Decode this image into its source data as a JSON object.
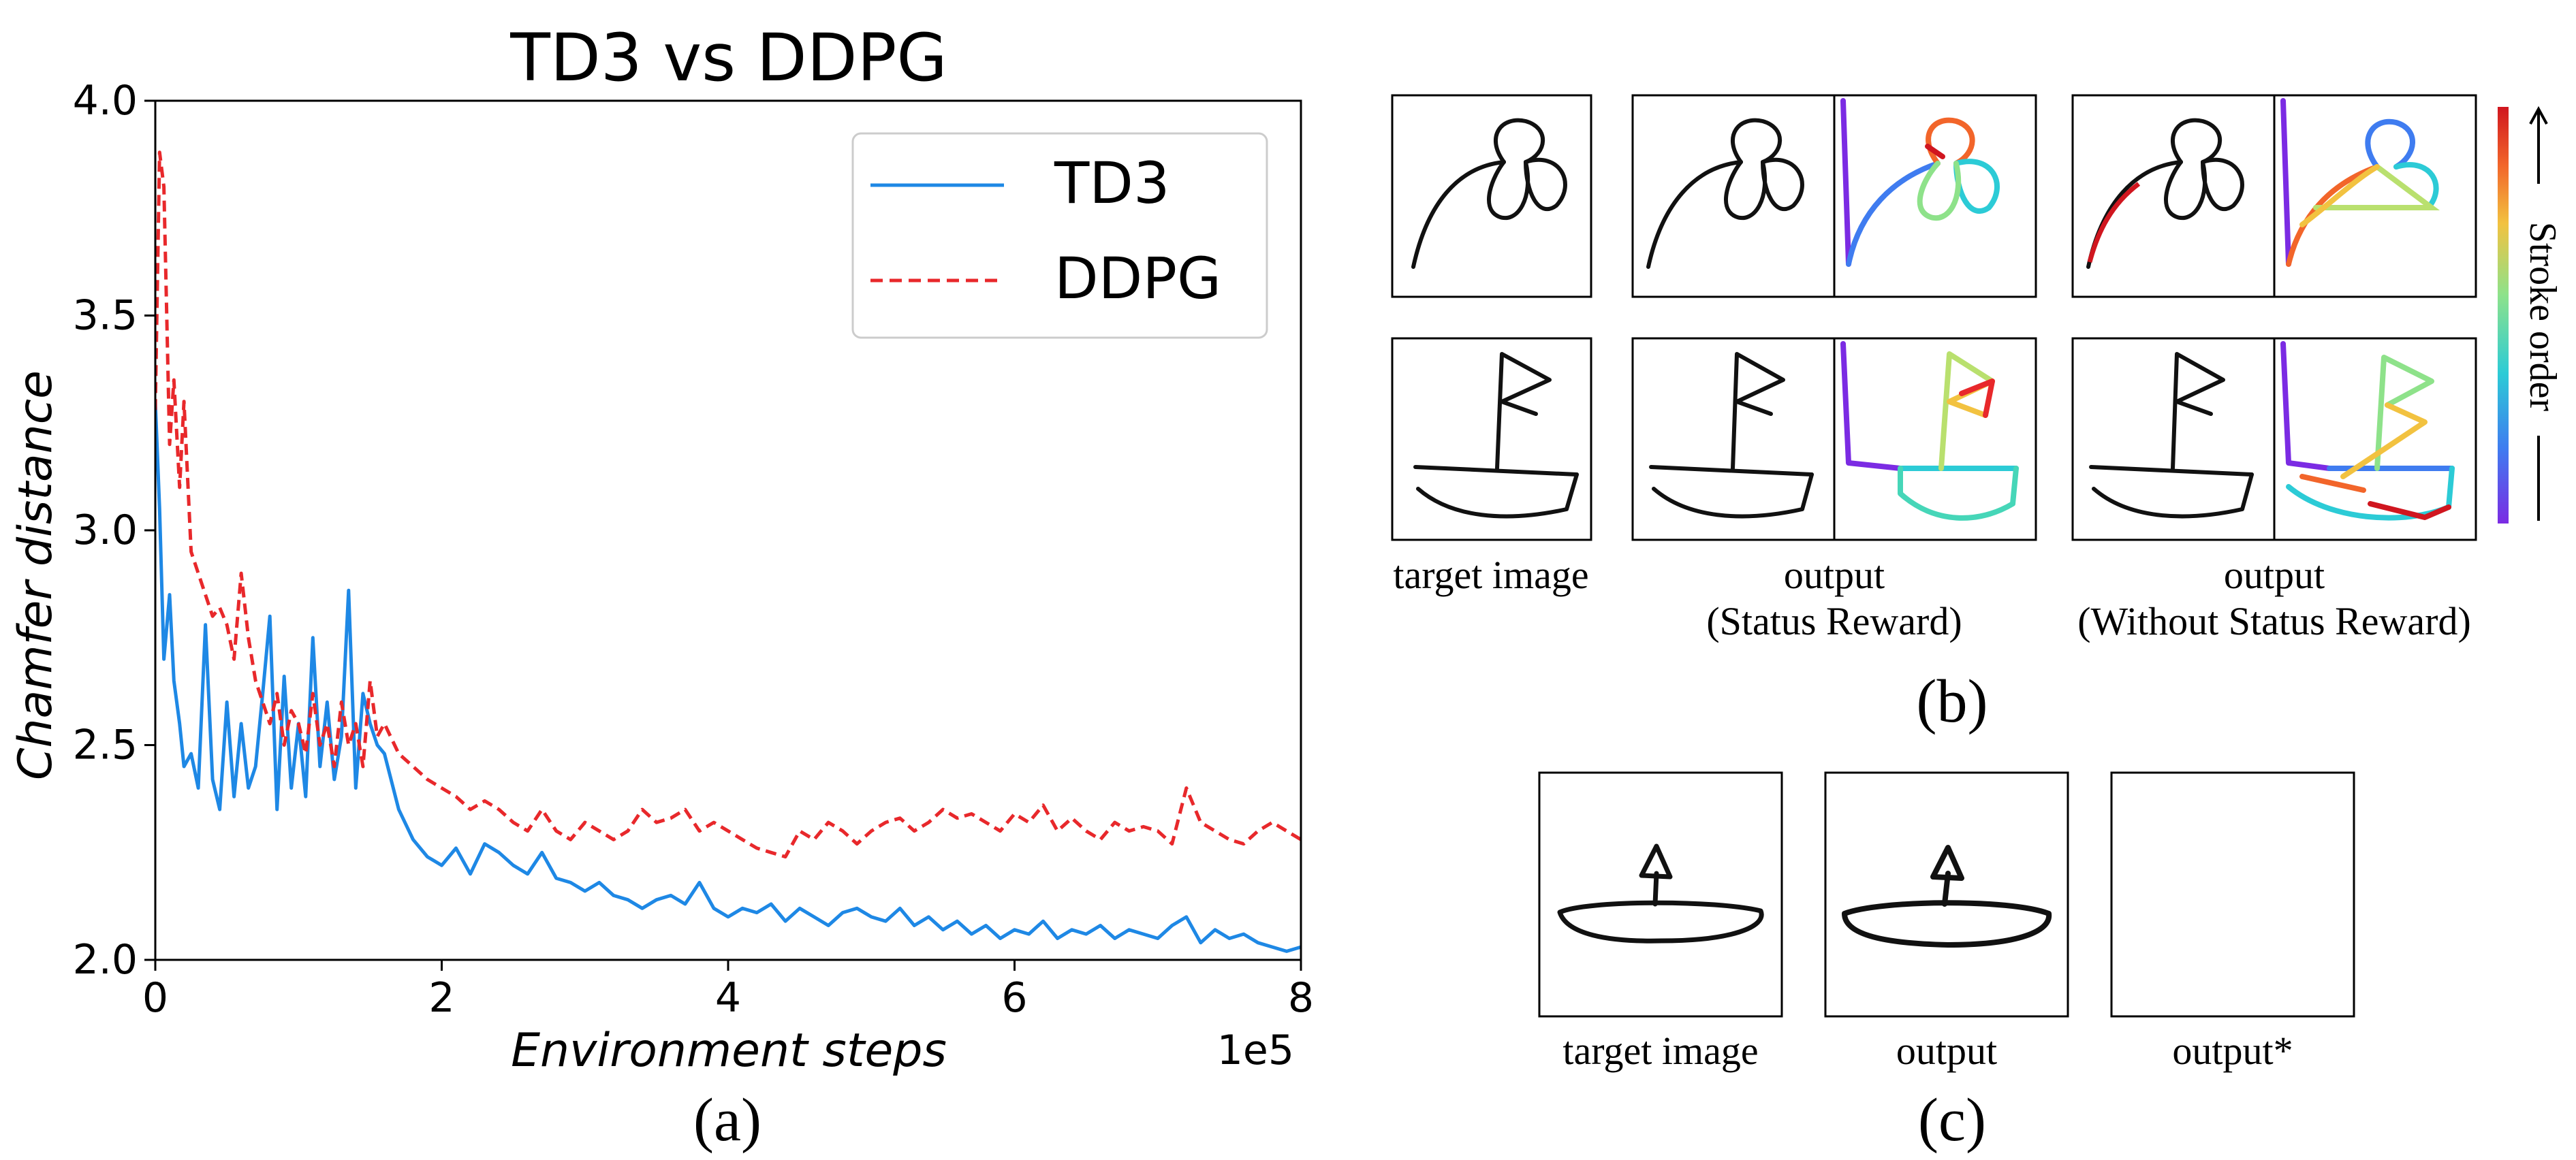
{
  "panel_a": {
    "caption": "(a)",
    "chart_data": {
      "type": "line",
      "title": "TD3 vs DDPG",
      "xlabel": "Environment steps",
      "ylabel": "Chamfer distance",
      "x_multiplier_label": "1e5",
      "xlim": [
        0,
        8
      ],
      "ylim": [
        2.0,
        4.0
      ],
      "xticks": [
        0,
        2,
        4,
        6,
        8
      ],
      "xtick_labels": [
        "0",
        "2",
        "4",
        "6",
        "8"
      ],
      "yticks": [
        2.0,
        2.5,
        3.0,
        3.5,
        4.0
      ],
      "ytick_labels": [
        "2.0",
        "2.5",
        "3.0",
        "3.5",
        "4.0"
      ],
      "grid": false,
      "legend_position": "top-right",
      "series": [
        {
          "name": "TD3",
          "color": "#1e88e5",
          "style": "solid",
          "x": [
            0,
            0.03,
            0.06,
            0.1,
            0.13,
            0.17,
            0.2,
            0.25,
            0.3,
            0.35,
            0.4,
            0.45,
            0.5,
            0.55,
            0.6,
            0.65,
            0.7,
            0.75,
            0.8,
            0.85,
            0.9,
            0.95,
            1.0,
            1.05,
            1.1,
            1.15,
            1.2,
            1.25,
            1.3,
            1.35,
            1.4,
            1.45,
            1.5,
            1.55,
            1.6,
            1.7,
            1.8,
            1.9,
            2.0,
            2.1,
            2.2,
            2.3,
            2.4,
            2.5,
            2.6,
            2.7,
            2.8,
            2.9,
            3.0,
            3.1,
            3.2,
            3.3,
            3.4,
            3.5,
            3.6,
            3.7,
            3.8,
            3.9,
            4.0,
            4.1,
            4.2,
            4.3,
            4.4,
            4.5,
            4.6,
            4.7,
            4.8,
            4.9,
            5.0,
            5.1,
            5.2,
            5.3,
            5.4,
            5.5,
            5.6,
            5.7,
            5.8,
            5.9,
            6.0,
            6.1,
            6.2,
            6.3,
            6.4,
            6.5,
            6.6,
            6.7,
            6.8,
            6.9,
            7.0,
            7.1,
            7.2,
            7.3,
            7.4,
            7.5,
            7.6,
            7.7,
            7.8,
            7.9,
            8.0
          ],
          "y": [
            3.3,
            3.05,
            2.7,
            2.85,
            2.65,
            2.55,
            2.45,
            2.48,
            2.4,
            2.78,
            2.42,
            2.35,
            2.6,
            2.38,
            2.55,
            2.4,
            2.45,
            2.62,
            2.8,
            2.35,
            2.66,
            2.4,
            2.55,
            2.38,
            2.75,
            2.45,
            2.6,
            2.42,
            2.52,
            2.86,
            2.4,
            2.62,
            2.55,
            2.5,
            2.48,
            2.35,
            2.28,
            2.24,
            2.22,
            2.26,
            2.2,
            2.27,
            2.25,
            2.22,
            2.2,
            2.25,
            2.19,
            2.18,
            2.16,
            2.18,
            2.15,
            2.14,
            2.12,
            2.14,
            2.15,
            2.13,
            2.18,
            2.12,
            2.1,
            2.12,
            2.11,
            2.13,
            2.09,
            2.12,
            2.1,
            2.08,
            2.11,
            2.12,
            2.1,
            2.09,
            2.12,
            2.08,
            2.1,
            2.07,
            2.09,
            2.06,
            2.08,
            2.05,
            2.07,
            2.06,
            2.09,
            2.05,
            2.07,
            2.06,
            2.08,
            2.05,
            2.07,
            2.06,
            2.05,
            2.08,
            2.1,
            2.04,
            2.07,
            2.05,
            2.06,
            2.04,
            2.03,
            2.02,
            2.03
          ]
        },
        {
          "name": "DDPG",
          "color": "#e8282b",
          "style": "dashed",
          "x": [
            0,
            0.03,
            0.06,
            0.1,
            0.13,
            0.17,
            0.2,
            0.25,
            0.3,
            0.35,
            0.4,
            0.45,
            0.5,
            0.55,
            0.6,
            0.65,
            0.7,
            0.75,
            0.8,
            0.85,
            0.9,
            0.95,
            1.0,
            1.05,
            1.1,
            1.15,
            1.2,
            1.25,
            1.3,
            1.35,
            1.4,
            1.45,
            1.5,
            1.55,
            1.6,
            1.7,
            1.8,
            1.9,
            2.0,
            2.1,
            2.2,
            2.3,
            2.4,
            2.5,
            2.6,
            2.7,
            2.8,
            2.9,
            3.0,
            3.1,
            3.2,
            3.3,
            3.4,
            3.5,
            3.6,
            3.7,
            3.8,
            3.9,
            4.0,
            4.1,
            4.2,
            4.3,
            4.4,
            4.5,
            4.6,
            4.7,
            4.8,
            4.9,
            5.0,
            5.1,
            5.2,
            5.3,
            5.4,
            5.5,
            5.6,
            5.7,
            5.8,
            5.9,
            6.0,
            6.1,
            6.2,
            6.3,
            6.4,
            6.5,
            6.6,
            6.7,
            6.8,
            6.9,
            7.0,
            7.1,
            7.2,
            7.3,
            7.4,
            7.5,
            7.6,
            7.7,
            7.8,
            7.9,
            8.0
          ],
          "y": [
            3.28,
            3.88,
            3.8,
            3.2,
            3.35,
            3.1,
            3.3,
            2.95,
            2.9,
            2.85,
            2.8,
            2.82,
            2.78,
            2.7,
            2.9,
            2.75,
            2.65,
            2.6,
            2.55,
            2.62,
            2.5,
            2.58,
            2.55,
            2.48,
            2.62,
            2.5,
            2.55,
            2.45,
            2.6,
            2.5,
            2.55,
            2.45,
            2.65,
            2.52,
            2.55,
            2.48,
            2.45,
            2.42,
            2.4,
            2.38,
            2.35,
            2.37,
            2.35,
            2.32,
            2.3,
            2.35,
            2.3,
            2.28,
            2.32,
            2.3,
            2.28,
            2.3,
            2.35,
            2.32,
            2.33,
            2.35,
            2.3,
            2.32,
            2.3,
            2.28,
            2.26,
            2.25,
            2.24,
            2.3,
            2.28,
            2.32,
            2.3,
            2.27,
            2.3,
            2.32,
            2.33,
            2.3,
            2.32,
            2.35,
            2.33,
            2.34,
            2.32,
            2.3,
            2.34,
            2.32,
            2.36,
            2.3,
            2.33,
            2.3,
            2.28,
            2.32,
            2.3,
            2.31,
            2.3,
            2.27,
            2.4,
            2.32,
            2.3,
            2.28,
            2.27,
            2.3,
            2.32,
            2.3,
            2.28
          ]
        }
      ]
    }
  },
  "panel_b": {
    "caption": "(b)",
    "col_labels": [
      {
        "line1": "target image",
        "line2": ""
      },
      {
        "line1": "output",
        "line2": "(Status Reward)"
      },
      {
        "line1": "output",
        "line2": "(Without Status Reward)"
      }
    ],
    "colorbar_label": "Stroke order",
    "colorbar_colors": [
      "#7b2be3",
      "#3f7cf0",
      "#2ccbd6",
      "#8ee28a",
      "#f2c240",
      "#f2652a",
      "#d0161f"
    ]
  },
  "panel_c": {
    "caption": "(c)",
    "labels": [
      "target image",
      "output",
      "output*"
    ]
  }
}
